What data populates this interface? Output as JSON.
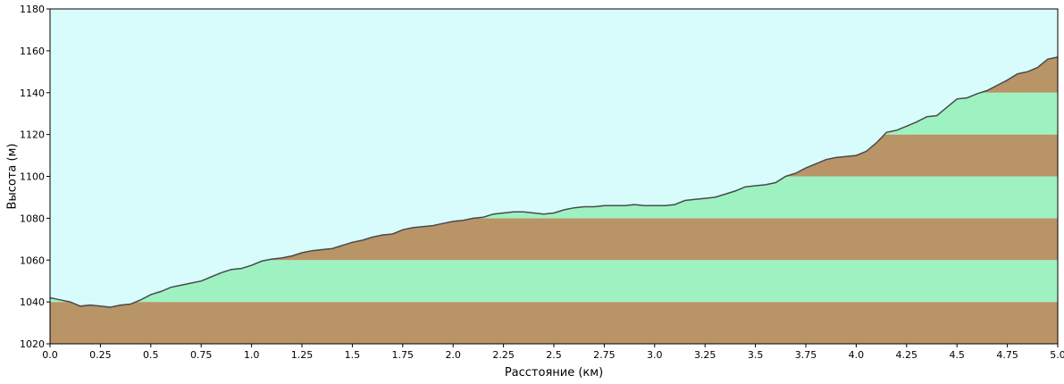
{
  "chart_data": {
    "type": "area",
    "title": "",
    "xlabel": "Расстояние  (км)",
    "ylabel": "Высота (м)",
    "xlim": [
      0,
      5
    ],
    "ylim": [
      1020,
      1180
    ],
    "x_ticks": [
      "0.0",
      "0.25",
      "0.5",
      "0.75",
      "1.0",
      "1.25",
      "1.5",
      "1.75",
      "2.0",
      "2.25",
      "2.5",
      "2.75",
      "3.0",
      "3.25",
      "3.5",
      "3.75",
      "4.0",
      "4.25",
      "4.5",
      "4.75",
      "5.0"
    ],
    "y_ticks": [
      "1020",
      "1040",
      "1060",
      "1080",
      "1100",
      "1120",
      "1140",
      "1160",
      "1180"
    ],
    "band_step": 20,
    "grid": false,
    "colors": {
      "sky": "#d8fcfc",
      "band_brown": "#b89467",
      "band_green": "#9ef2c2",
      "profile_line": "#4a4a4a",
      "axis": "#000000"
    },
    "series": [
      {
        "x": [
          0.0,
          0.05,
          0.1,
          0.15,
          0.2,
          0.25,
          0.3,
          0.35,
          0.4,
          0.45,
          0.5,
          0.55,
          0.6,
          0.65,
          0.7,
          0.75,
          0.8,
          0.85,
          0.9,
          0.95,
          1.0,
          1.05,
          1.1,
          1.15,
          1.2,
          1.25,
          1.3,
          1.35,
          1.4,
          1.45,
          1.5,
          1.55,
          1.6,
          1.65,
          1.7,
          1.75,
          1.8,
          1.85,
          1.9,
          1.95,
          2.0,
          2.05,
          2.1,
          2.15,
          2.2,
          2.25,
          2.3,
          2.35,
          2.4,
          2.45,
          2.5,
          2.55,
          2.6,
          2.65,
          2.7,
          2.75,
          2.8,
          2.85,
          2.9,
          2.95,
          3.0,
          3.05,
          3.1,
          3.15,
          3.2,
          3.25,
          3.3,
          3.35,
          3.4,
          3.45,
          3.5,
          3.55,
          3.6,
          3.65,
          3.7,
          3.75,
          3.8,
          3.85,
          3.9,
          3.95,
          4.0,
          4.05,
          4.1,
          4.15,
          4.2,
          4.25,
          4.3,
          4.35,
          4.4,
          4.45,
          4.5,
          4.55,
          4.6,
          4.65,
          4.7,
          4.75,
          4.8,
          4.85,
          4.9,
          4.95,
          5.0
        ],
        "y": [
          1042,
          1041,
          1040,
          1038,
          1038.5,
          1038,
          1037.5,
          1038.5,
          1039,
          1041,
          1043.5,
          1045,
          1047,
          1048,
          1049,
          1050,
          1052,
          1054,
          1055.5,
          1056,
          1057.5,
          1059.5,
          1060.5,
          1061,
          1062,
          1063.5,
          1064.5,
          1065,
          1065.5,
          1067,
          1068.5,
          1069.5,
          1071,
          1072,
          1072.5,
          1074.5,
          1075.5,
          1076,
          1076.5,
          1077.5,
          1078.5,
          1079,
          1080,
          1080.5,
          1082,
          1082.5,
          1083,
          1083,
          1082.5,
          1082,
          1082.5,
          1084,
          1085,
          1085.5,
          1085.5,
          1086,
          1086,
          1086,
          1086.5,
          1086,
          1086,
          1086,
          1086.5,
          1088.5,
          1089,
          1089.5,
          1090,
          1091.5,
          1093,
          1095,
          1095.5,
          1096,
          1097,
          1100,
          1101.5,
          1104,
          1106,
          1108,
          1109,
          1109.5,
          1110,
          1112,
          1116,
          1121,
          1122,
          1124,
          1126,
          1128.5,
          1129,
          1133,
          1137,
          1137.5,
          1139.5,
          1141,
          1143.5,
          1146,
          1149,
          1150,
          1152,
          1156,
          1157
        ]
      }
    ]
  }
}
